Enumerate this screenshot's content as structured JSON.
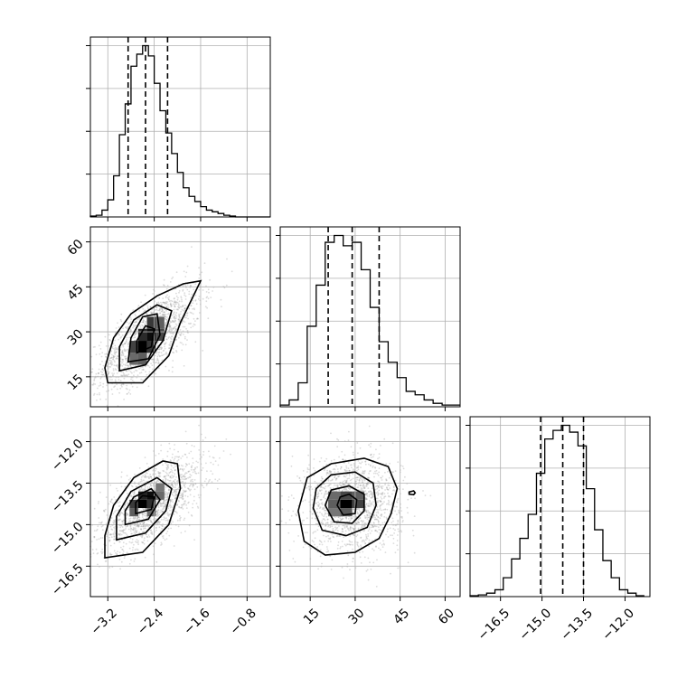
{
  "chart_data": {
    "type": "corner",
    "title": "",
    "grid": true,
    "parameters": [
      {
        "xlim": [
          -3.5,
          -0.4
        ],
        "ticks": [
          -3.2,
          -2.4,
          -1.6,
          -0.8
        ],
        "tick_labels": [
          "−3.2",
          "−2.4",
          "−1.6",
          "−0.8"
        ],
        "quantiles": [
          -2.85,
          -2.55,
          -2.17
        ],
        "hist": {
          "bin_edges": [
            -3.5,
            -3.4,
            -3.3,
            -3.2,
            -3.1,
            -3.0,
            -2.9,
            -2.8,
            -2.7,
            -2.6,
            -2.5,
            -2.4,
            -2.3,
            -2.2,
            -2.1,
            -2.0,
            -1.9,
            -1.8,
            -1.7,
            -1.6,
            -1.5,
            -1.4,
            -1.3,
            -1.2,
            -1.1,
            -1.0,
            -0.9,
            -0.8,
            -0.7,
            -0.6,
            -0.5,
            -0.4
          ],
          "counts": [
            0.5,
            1,
            4,
            10,
            24,
            48,
            66,
            88,
            95,
            100,
            94,
            78,
            62,
            49,
            37,
            26,
            17,
            12,
            9,
            6,
            4,
            3,
            2,
            1,
            0.5,
            0,
            0,
            0,
            0,
            0,
            0
          ]
        }
      },
      {
        "xlim": [
          5,
          65
        ],
        "ticks": [
          15,
          30,
          45,
          60
        ],
        "tick_labels": [
          "15",
          "30",
          "45",
          "60"
        ],
        "quantiles": [
          21,
          29,
          38
        ],
        "hist": {
          "bin_edges": [
            5,
            8,
            11,
            14,
            17,
            20,
            23,
            26,
            29,
            32,
            35,
            38,
            41,
            44,
            47,
            50,
            53,
            56,
            59,
            62,
            65
          ],
          "counts": [
            1,
            4,
            14,
            47,
            71,
            96,
            100,
            94,
            96,
            80,
            58,
            38,
            26,
            17,
            9,
            7,
            4,
            2,
            1,
            1
          ]
        }
      },
      {
        "xlim": [
          -17.6,
          -11.1
        ],
        "ticks": [
          -16.5,
          -15.0,
          -13.5,
          -12.0
        ],
        "tick_labels": [
          "−16.5",
          "−15.0",
          "−13.5",
          "−12.0"
        ],
        "quantiles": [
          -15.05,
          -14.25,
          -13.5
        ],
        "hist": {
          "bin_edges": [
            -17.6,
            -17.3,
            -17.0,
            -16.7,
            -16.4,
            -16.1,
            -15.8,
            -15.5,
            -15.2,
            -14.9,
            -14.6,
            -14.3,
            -14.0,
            -13.7,
            -13.4,
            -13.1,
            -12.8,
            -12.5,
            -12.2,
            -11.9,
            -11.6,
            -11.3
          ],
          "counts": [
            0.5,
            1,
            2,
            4,
            11,
            22,
            34,
            48,
            72,
            92,
            97,
            100,
            96,
            88,
            63,
            39,
            21,
            11,
            4,
            2,
            0.5
          ]
        }
      }
    ],
    "panels": [
      {
        "x_param": 0,
        "y_param": 1,
        "cells": [
          {
            "x": -2.75,
            "y": 25,
            "v": 0.72
          },
          {
            "x": -2.6,
            "y": 25,
            "v": 1.0
          },
          {
            "x": -2.45,
            "y": 25,
            "v": 0.78
          },
          {
            "x": -2.6,
            "y": 29,
            "v": 0.82
          },
          {
            "x": -2.45,
            "y": 29,
            "v": 0.95
          },
          {
            "x": -2.3,
            "y": 29,
            "v": 0.7
          },
          {
            "x": -2.45,
            "y": 33,
            "v": 0.76
          },
          {
            "x": -2.3,
            "y": 33,
            "v": 0.6
          },
          {
            "x": -2.75,
            "y": 21,
            "v": 0.55
          },
          {
            "x": -2.6,
            "y": 21,
            "v": 0.6
          }
        ],
        "contours": [
          [
            [
              -3.2,
              13
            ],
            [
              -2.6,
              13
            ],
            [
              -2.15,
              22
            ],
            [
              -1.95,
              33
            ],
            [
              -1.6,
              47
            ],
            [
              -1.9,
              46
            ],
            [
              -2.35,
              42
            ],
            [
              -2.8,
              36
            ],
            [
              -3.1,
              28
            ],
            [
              -3.25,
              18
            ],
            [
              -3.2,
              13
            ]
          ],
          [
            [
              -3.0,
              17
            ],
            [
              -2.55,
              19
            ],
            [
              -2.25,
              27
            ],
            [
              -2.1,
              37
            ],
            [
              -2.35,
              39
            ],
            [
              -2.75,
              34
            ],
            [
              -3.0,
              25
            ],
            [
              -3.0,
              17
            ]
          ],
          [
            [
              -2.85,
              20
            ],
            [
              -2.5,
              21
            ],
            [
              -2.3,
              29
            ],
            [
              -2.35,
              36
            ],
            [
              -2.6,
              35
            ],
            [
              -2.8,
              28
            ],
            [
              -2.85,
              20
            ]
          ],
          [
            [
              -2.7,
              23
            ],
            [
              -2.45,
              25
            ],
            [
              -2.4,
              31
            ],
            [
              -2.55,
              32
            ],
            [
              -2.7,
              27
            ],
            [
              -2.7,
              23
            ]
          ]
        ],
        "scatter_cloud": {
          "center": [
            -2.5,
            28
          ],
          "spread": [
            0.45,
            8.5
          ],
          "correlation": 0.72,
          "n": 1600
        }
      },
      {
        "x_param": 0,
        "y_param": 2,
        "cells": [
          {
            "x": -2.75,
            "y": -14.25,
            "v": 0.75
          },
          {
            "x": -2.6,
            "y": -14.25,
            "v": 1.0
          },
          {
            "x": -2.45,
            "y": -14.25,
            "v": 0.8
          },
          {
            "x": -2.6,
            "y": -13.95,
            "v": 0.85
          },
          {
            "x": -2.45,
            "y": -13.95,
            "v": 0.95
          },
          {
            "x": -2.3,
            "y": -13.95,
            "v": 0.55
          },
          {
            "x": -2.75,
            "y": -14.55,
            "v": 0.6
          },
          {
            "x": -2.45,
            "y": -14.55,
            "v": 0.55
          },
          {
            "x": -2.3,
            "y": -13.65,
            "v": 0.5
          }
        ],
        "contours": [
          [
            [
              -3.25,
              -16.2
            ],
            [
              -2.6,
              -16.0
            ],
            [
              -2.15,
              -15.0
            ],
            [
              -1.95,
              -13.7
            ],
            [
              -2.0,
              -12.8
            ],
            [
              -2.25,
              -12.7
            ],
            [
              -2.75,
              -13.3
            ],
            [
              -3.1,
              -14.3
            ],
            [
              -3.25,
              -15.4
            ],
            [
              -3.25,
              -16.2
            ]
          ],
          [
            [
              -3.05,
              -15.55
            ],
            [
              -2.55,
              -15.3
            ],
            [
              -2.2,
              -14.5
            ],
            [
              -2.1,
              -13.7
            ],
            [
              -2.35,
              -13.3
            ],
            [
              -2.8,
              -13.8
            ],
            [
              -3.05,
              -14.7
            ],
            [
              -3.05,
              -15.55
            ]
          ],
          [
            [
              -2.9,
              -15.0
            ],
            [
              -2.5,
              -14.8
            ],
            [
              -2.3,
              -14.1
            ],
            [
              -2.45,
              -13.7
            ],
            [
              -2.75,
              -14.0
            ],
            [
              -2.9,
              -14.5
            ],
            [
              -2.9,
              -15.0
            ]
          ],
          [
            [
              -2.72,
              -14.6
            ],
            [
              -2.45,
              -14.45
            ],
            [
              -2.4,
              -14.0
            ],
            [
              -2.6,
              -13.95
            ],
            [
              -2.72,
              -14.2
            ],
            [
              -2.72,
              -14.6
            ]
          ]
        ],
        "scatter_cloud": {
          "center": [
            -2.45,
            -14.25
          ],
          "spread": [
            0.45,
            0.85
          ],
          "correlation": 0.65,
          "n": 1600
        }
      },
      {
        "x_param": 1,
        "y_param": 2,
        "cells": [
          {
            "x": 23,
            "y": -14.25,
            "v": 0.6
          },
          {
            "x": 27,
            "y": -14.25,
            "v": 1.0
          },
          {
            "x": 31,
            "y": -14.25,
            "v": 0.72
          },
          {
            "x": 27,
            "y": -13.95,
            "v": 0.7
          },
          {
            "x": 31,
            "y": -13.95,
            "v": 0.6
          },
          {
            "x": 27,
            "y": -14.55,
            "v": 0.62
          },
          {
            "x": 23,
            "y": -14.55,
            "v": 0.5
          },
          {
            "x": 23,
            "y": -13.95,
            "v": 0.55
          }
        ],
        "contours": [
          [
            [
              11,
              -14.5
            ],
            [
              13,
              -15.6
            ],
            [
              20,
              -16.1
            ],
            [
              30,
              -16.0
            ],
            [
              38,
              -15.5
            ],
            [
              42,
              -14.6
            ],
            [
              44,
              -13.7
            ],
            [
              41,
              -12.9
            ],
            [
              33,
              -12.6
            ],
            [
              22,
              -12.8
            ],
            [
              14,
              -13.3
            ],
            [
              11,
              -14.5
            ]
          ],
          [
            [
              16,
              -14.4
            ],
            [
              19,
              -15.2
            ],
            [
              27,
              -15.4
            ],
            [
              34,
              -15.1
            ],
            [
              37,
              -14.3
            ],
            [
              36,
              -13.5
            ],
            [
              30,
              -13.1
            ],
            [
              22,
              -13.2
            ],
            [
              17,
              -13.7
            ],
            [
              16,
              -14.4
            ]
          ],
          [
            [
              20,
              -14.3
            ],
            [
              23,
              -14.9
            ],
            [
              29,
              -14.95
            ],
            [
              33,
              -14.5
            ],
            [
              33,
              -13.9
            ],
            [
              28,
              -13.6
            ],
            [
              22,
              -13.75
            ],
            [
              20,
              -14.3
            ]
          ],
          [
            [
              24,
              -14.3
            ],
            [
              26,
              -14.65
            ],
            [
              30,
              -14.6
            ],
            [
              30.5,
              -14.1
            ],
            [
              28,
              -13.9
            ],
            [
              25,
              -14.0
            ],
            [
              24,
              -14.3
            ]
          ],
          [
            [
              48,
              -13.82
            ],
            [
              49.5,
              -13.78
            ],
            [
              50,
              -13.85
            ],
            [
              49.5,
              -13.92
            ],
            [
              48,
              -13.9
            ],
            [
              48,
              -13.82
            ]
          ]
        ],
        "scatter_cloud": {
          "center": [
            29,
            -14.25
          ],
          "spread": [
            8.0,
            0.85
          ],
          "correlation": 0.0,
          "n": 1600
        }
      }
    ]
  }
}
